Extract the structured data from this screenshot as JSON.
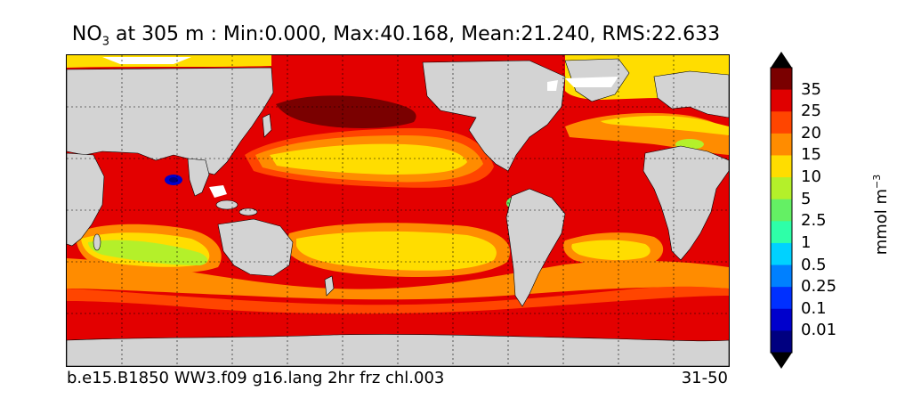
{
  "title": {
    "variable": "NO",
    "subscript": "3",
    "rest": " at 305 m : Min:0.000, Max:40.168, Mean:21.240, RMS:22.633"
  },
  "caption": {
    "case": "b.e15.B1850 WW3.f09 g16.lang 2hr frz chl.003",
    "years": "31-50"
  },
  "colorbar": {
    "units": "mmol m",
    "units_exponent": "−3",
    "labels": [
      "35",
      "25",
      "20",
      "15",
      "10",
      "5",
      "2.5",
      "1",
      "0.5",
      "0.25",
      "0.1",
      "0.01"
    ],
    "colors": [
      "#7a0000",
      "#e00000",
      "#ff4500",
      "#ff8c00",
      "#ffdd00",
      "#b4f02a",
      "#64f064",
      "#2effa8",
      "#00d2ff",
      "#0080ff",
      "#0030ff",
      "#0000cc",
      "#000080"
    ],
    "top_extend_color": "#000000",
    "bottom_extend_color": "#000000"
  },
  "map": {
    "projection": "equirectangular",
    "land_color": "#d3d3d3",
    "ice_color": "#ffffff",
    "gridlines": "dashed"
  }
}
